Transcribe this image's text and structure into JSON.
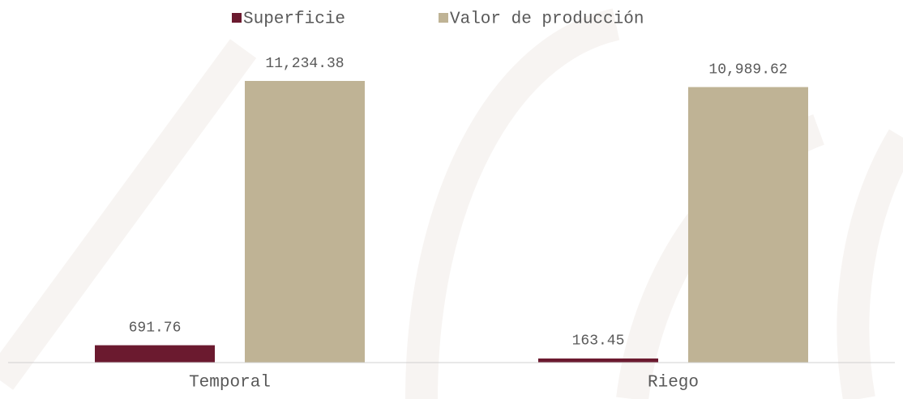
{
  "chart_data": {
    "type": "bar",
    "categories": [
      "Temporal",
      "Riego"
    ],
    "series": [
      {
        "name": "Superficie",
        "color": "#6b1a2f",
        "values": [
          691.76,
          163.45
        ],
        "value_labels": [
          "691.76",
          "163.45"
        ]
      },
      {
        "name": "Valor de producción",
        "color": "#bfb395",
        "values": [
          11234.38,
          10989.62
        ],
        "value_labels": [
          "11,234.38",
          "10,989.62"
        ]
      }
    ],
    "legend": "top"
  }
}
